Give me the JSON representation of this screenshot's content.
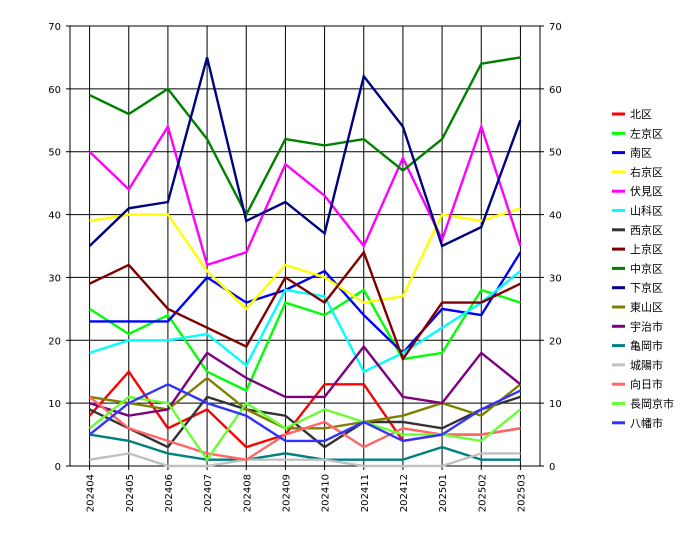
{
  "chart_data": {
    "type": "line",
    "title": "",
    "xlabel": "",
    "ylabel": "",
    "ylim": [
      0,
      70
    ],
    "yticks": [
      0,
      10,
      20,
      30,
      40,
      50,
      60,
      70
    ],
    "grid": true,
    "legend_position": "right",
    "categories": [
      "202404",
      "202405",
      "202406",
      "202407",
      "202408",
      "202409",
      "202410",
      "202411",
      "202412",
      "202501",
      "202502",
      "202503"
    ],
    "series": [
      {
        "name": "北区",
        "color": "#ff0000",
        "values": [
          8,
          15,
          6,
          9,
          3,
          5,
          13,
          13,
          4,
          5,
          5,
          6
        ]
      },
      {
        "name": "左京区",
        "color": "#00ff00",
        "values": [
          25,
          21,
          24,
          15,
          12,
          26,
          24,
          28,
          17,
          18,
          28,
          26
        ]
      },
      {
        "name": "南区",
        "color": "#0000ff",
        "values": [
          23,
          23,
          23,
          30,
          26,
          28,
          31,
          24,
          18,
          25,
          24,
          34
        ]
      },
      {
        "name": "右京区",
        "color": "#ffff00",
        "values": [
          39,
          40,
          40,
          31,
          25,
          32,
          30,
          26,
          27,
          40,
          39,
          41
        ]
      },
      {
        "name": "伏見区",
        "color": "#ff00ff",
        "values": [
          50,
          44,
          54,
          32,
          34,
          48,
          43,
          35,
          49,
          36,
          54,
          35
        ]
      },
      {
        "name": "山科区",
        "color": "#00ffff",
        "values": [
          18,
          20,
          20,
          21,
          16,
          28,
          27,
          15,
          18,
          22,
          26,
          31
        ]
      },
      {
        "name": "西京区",
        "color": "#333333",
        "values": [
          9,
          6,
          3,
          11,
          9,
          8,
          3,
          7,
          7,
          6,
          9,
          11
        ]
      },
      {
        "name": "上京区",
        "color": "#800000",
        "values": [
          29,
          32,
          25,
          22,
          19,
          30,
          26,
          34,
          17,
          26,
          26,
          29
        ]
      },
      {
        "name": "中京区",
        "color": "#008000",
        "values": [
          59,
          56,
          60,
          52,
          40,
          52,
          51,
          52,
          47,
          52,
          64,
          65
        ]
      },
      {
        "name": "下京区",
        "color": "#000080",
        "values": [
          35,
          41,
          42,
          65,
          39,
          42,
          37,
          62,
          54,
          35,
          38,
          55
        ]
      },
      {
        "name": "東山区",
        "color": "#808000",
        "values": [
          11,
          10,
          9,
          14,
          9,
          6,
          6,
          7,
          8,
          10,
          8,
          13
        ]
      },
      {
        "name": "宇治市",
        "color": "#800080",
        "values": [
          10,
          8,
          9,
          18,
          14,
          11,
          11,
          19,
          11,
          10,
          18,
          13
        ]
      },
      {
        "name": "亀岡市",
        "color": "#008080",
        "values": [
          5,
          4,
          2,
          1,
          1,
          2,
          1,
          1,
          1,
          3,
          1,
          1
        ]
      },
      {
        "name": "城陽市",
        "color": "#c0c0c0",
        "values": [
          1,
          2,
          0,
          0,
          1,
          1,
          1,
          0,
          0,
          0,
          2,
          2
        ]
      },
      {
        "name": "向日市",
        "color": "#ff6666",
        "values": [
          11,
          6,
          4,
          2,
          1,
          5,
          7,
          3,
          6,
          5,
          5,
          6
        ]
      },
      {
        "name": "長岡京市",
        "color": "#66ff33",
        "values": [
          6,
          11,
          10,
          1,
          10,
          6,
          9,
          7,
          5,
          5,
          4,
          9
        ]
      },
      {
        "name": "八幡市",
        "color": "#3333ff",
        "values": [
          5,
          10,
          13,
          10,
          8,
          4,
          4,
          7,
          4,
          5,
          9,
          12
        ]
      }
    ]
  }
}
